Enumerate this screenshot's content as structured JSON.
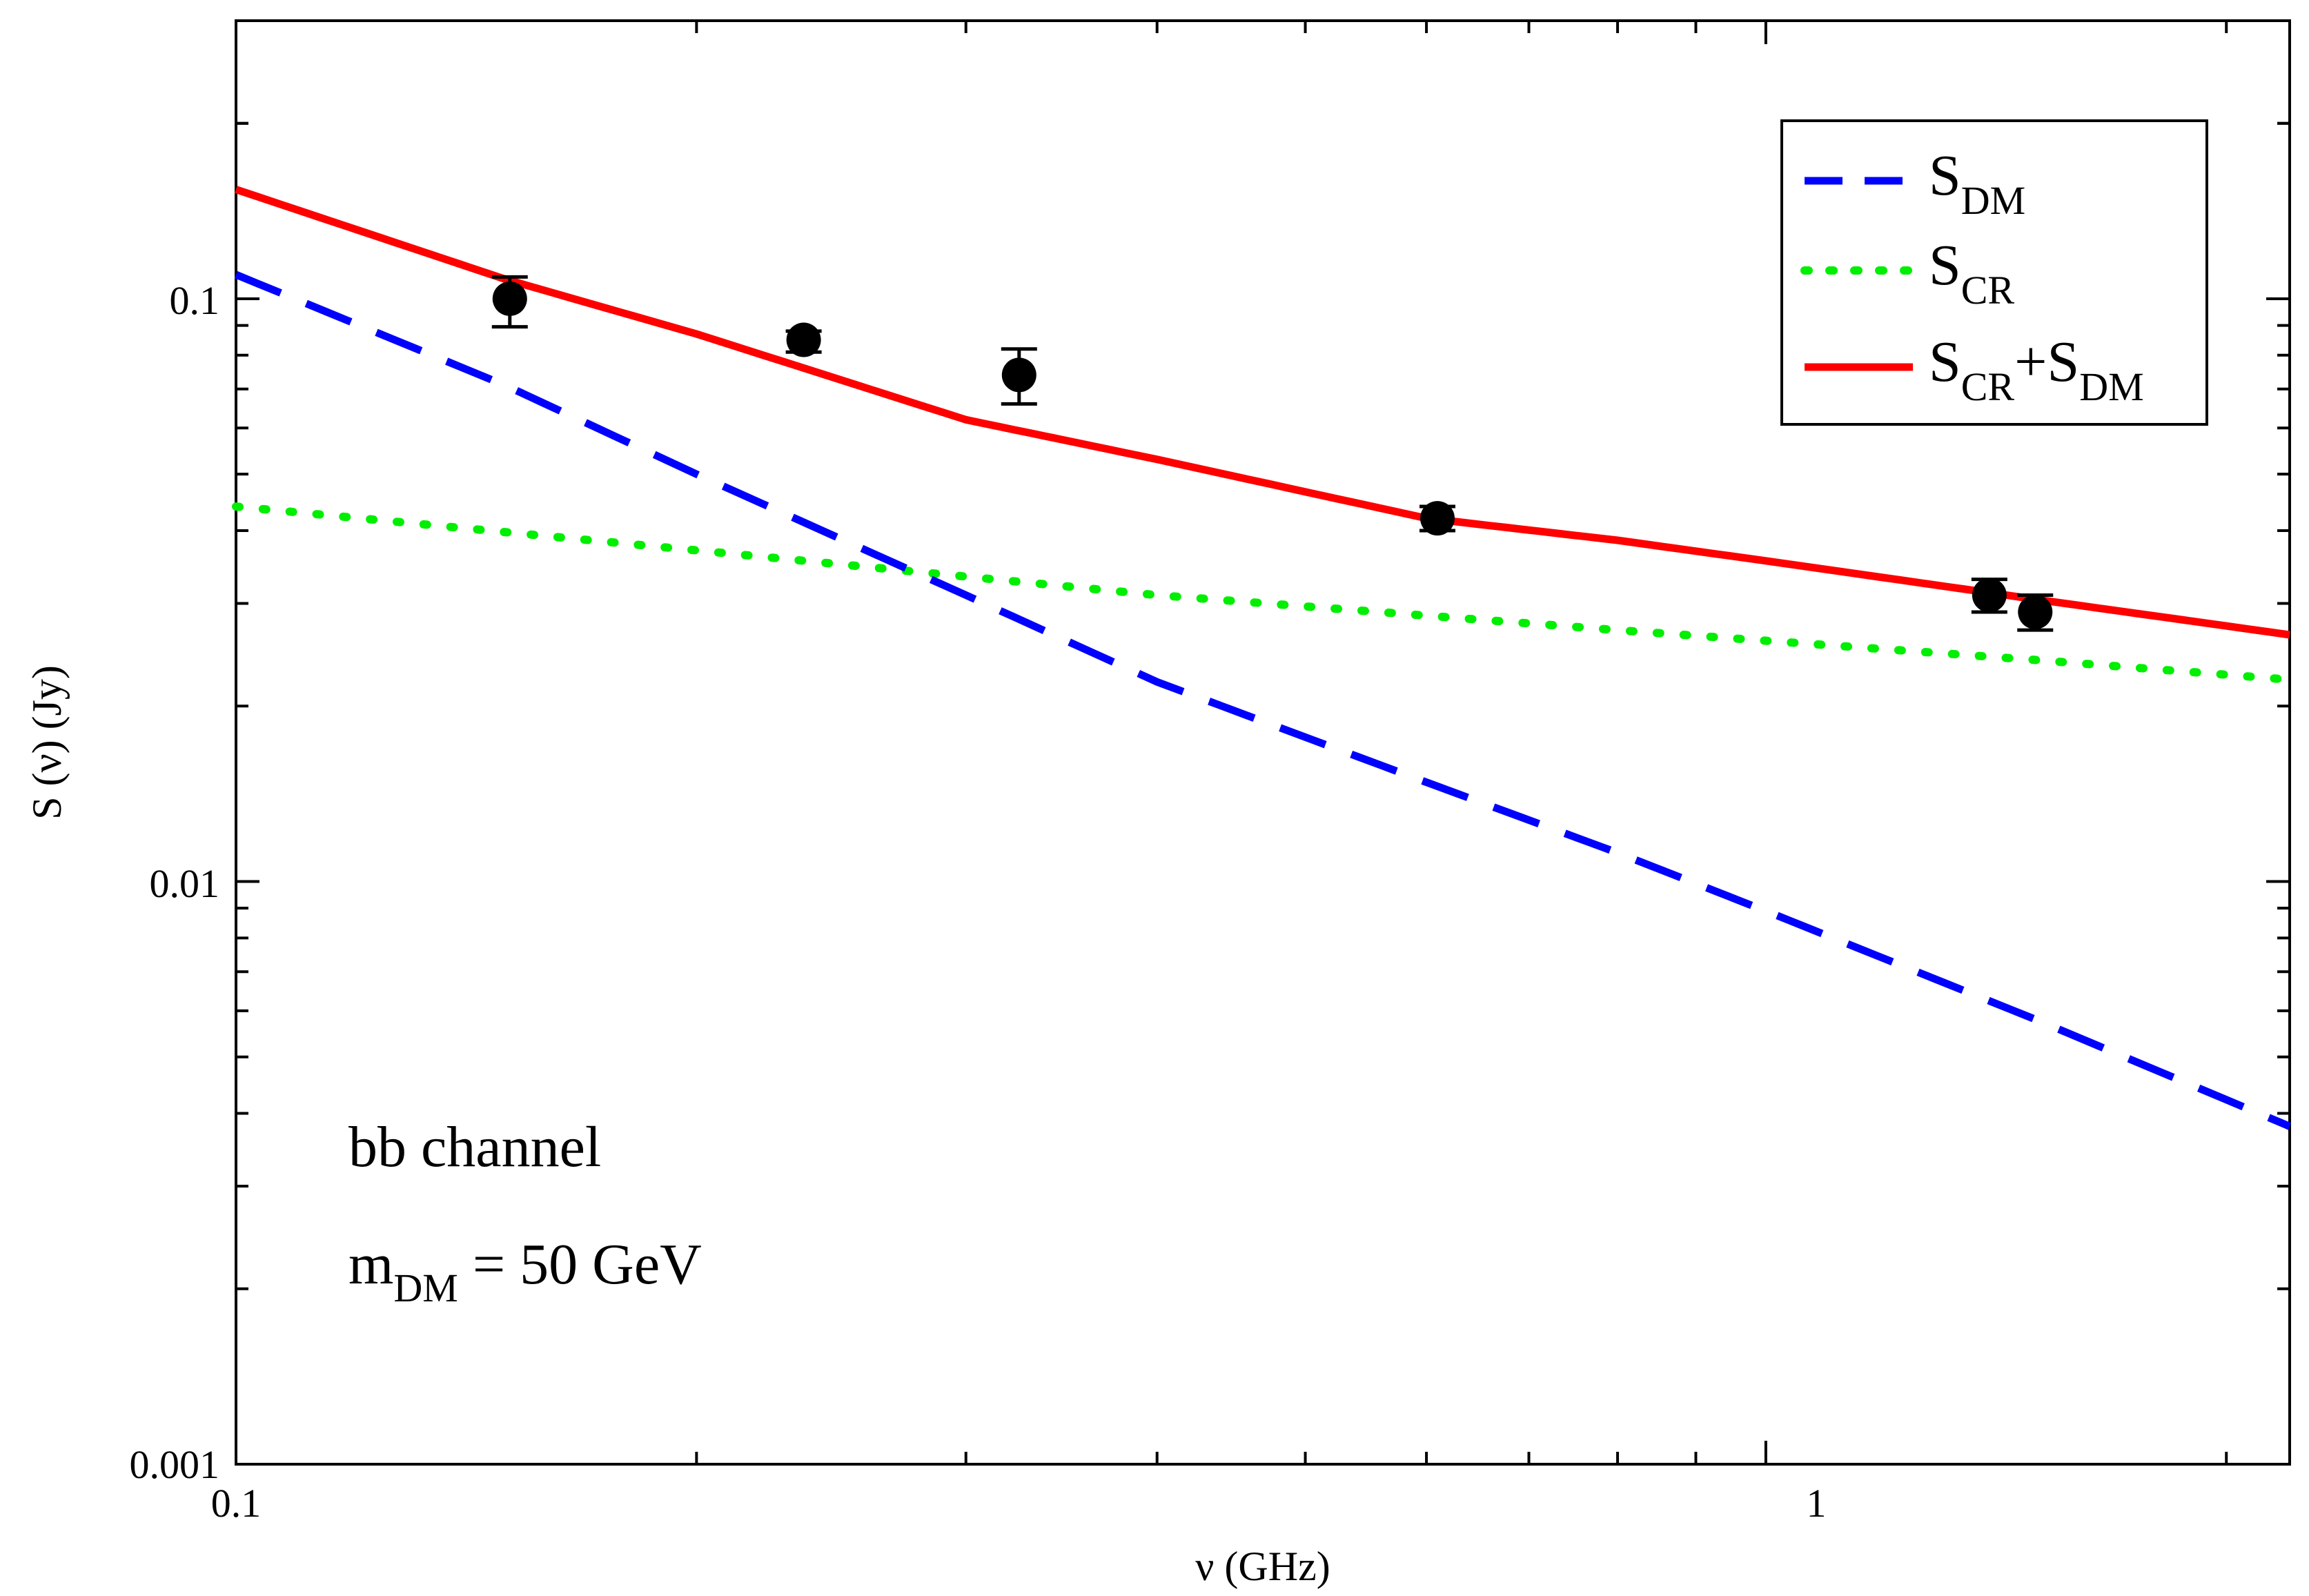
{
  "chart_data": {
    "type": "line",
    "title": "",
    "xlabel": "ν (GHz)",
    "ylabel": "S (ν) (Jy)",
    "xscale": "log",
    "yscale": "log",
    "xlim": [
      0.1,
      2.2
    ],
    "ylim": [
      0.001,
      0.3
    ],
    "x_ticks": [
      "0.1",
      "1"
    ],
    "y_ticks": [
      "0.001",
      "0.01",
      "0.1"
    ],
    "grid": false,
    "legend_position": "top-right",
    "series": [
      {
        "name": "S_DM",
        "legend_main": "S",
        "legend_sub": "DM",
        "style": "dashed",
        "color": "#0000ff",
        "x": [
          0.1,
          0.15,
          0.2,
          0.3,
          0.4,
          0.6,
          0.8,
          1.0,
          1.5,
          2.2
        ],
        "y": [
          0.11,
          0.071,
          0.05,
          0.031,
          0.022,
          0.0148,
          0.0112,
          0.0089,
          0.0058,
          0.0038
        ]
      },
      {
        "name": "S_CR",
        "legend_main": "S",
        "legend_sub": "CR",
        "style": "dotted",
        "color": "#00ee00",
        "x": [
          0.1,
          0.2,
          0.4,
          0.8,
          1.5,
          2.2
        ],
        "y": [
          0.044,
          0.037,
          0.031,
          0.027,
          0.024,
          0.0222
        ]
      },
      {
        "name": "S_CR+S_DM",
        "legend_main1": "S",
        "legend_sub1": "CR",
        "legend_plus": "+S",
        "legend_sub2": "DM",
        "style": "solid",
        "color": "#ff0000",
        "x": [
          0.1,
          0.15,
          0.2,
          0.3,
          0.4,
          0.6,
          0.8,
          1.0,
          1.5,
          2.2
        ],
        "y": [
          0.154,
          0.108,
          0.087,
          0.062,
          0.053,
          0.042,
          0.0385,
          0.0355,
          0.0305,
          0.0265
        ]
      }
    ],
    "points": {
      "name": "data",
      "color": "#000000",
      "x": [
        0.151,
        0.235,
        0.325,
        0.61,
        1.4,
        1.5
      ],
      "y": [
        0.1,
        0.085,
        0.074,
        0.042,
        0.031,
        0.029
      ],
      "yerr_low": [
        0.0895,
        0.081,
        0.066,
        0.04,
        0.029,
        0.027
      ],
      "yerr_high": [
        0.109,
        0.088,
        0.082,
        0.044,
        0.033,
        0.031
      ]
    },
    "annotations": {
      "channel": "bb channel",
      "mass_main": "m",
      "mass_sub": "DM",
      "mass_value": " = 50 GeV"
    }
  }
}
